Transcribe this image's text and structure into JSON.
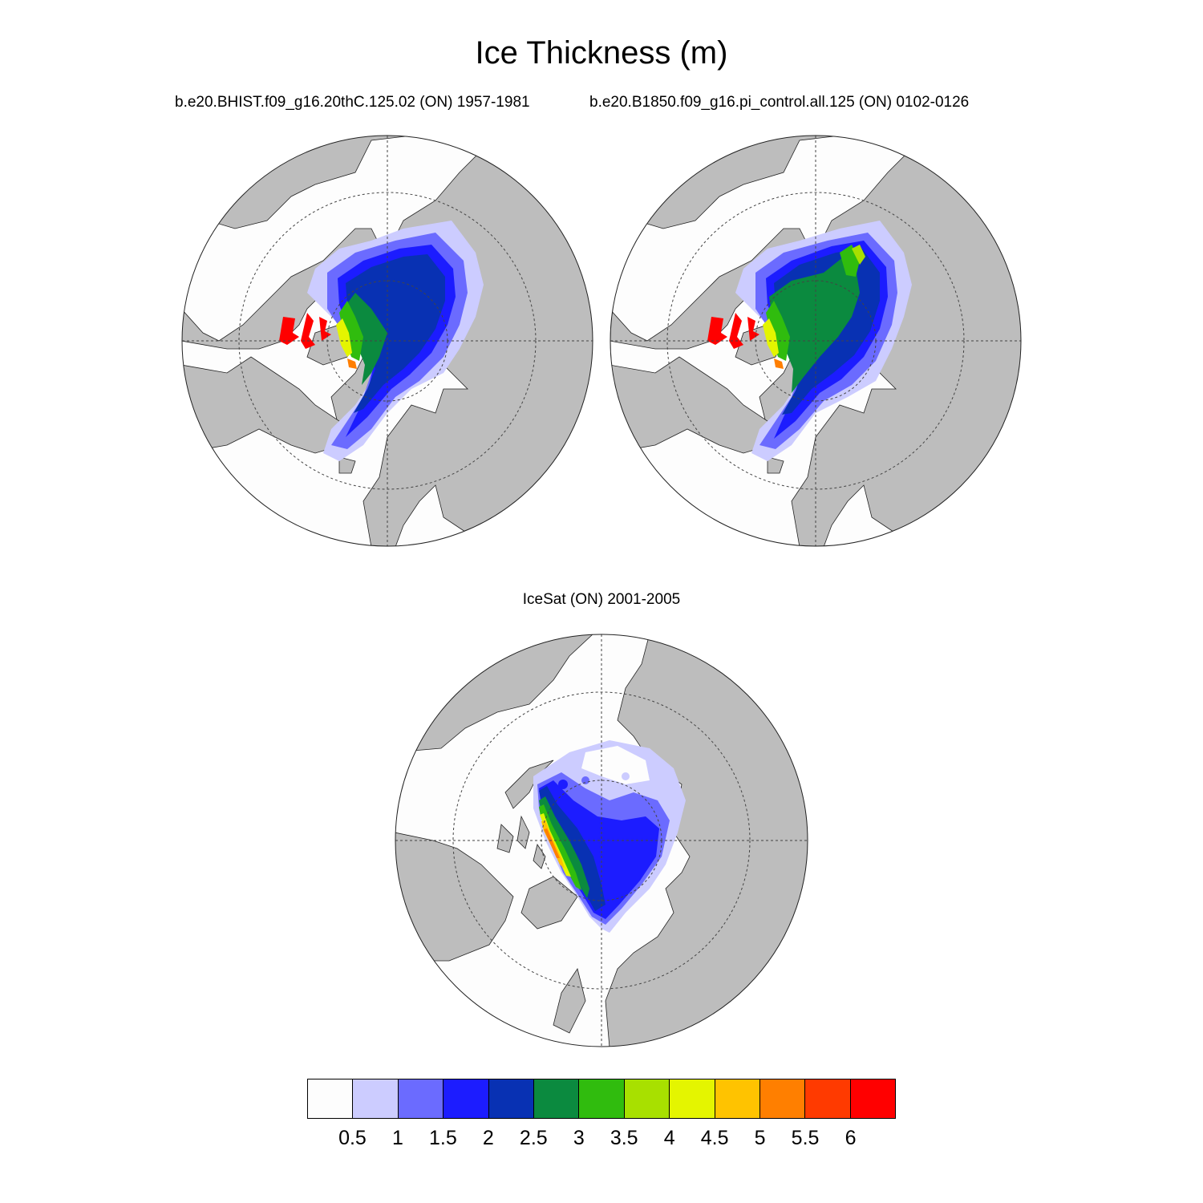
{
  "title": "Ice Thickness (m)",
  "panels": [
    {
      "subtitle": "b.e20.BHIST.f09_g16.20thC.125.02 (ON) 1957-1981"
    },
    {
      "subtitle": "b.e20.B1850.f09_g16.pi_control.all.125 (ON) 0102-0126"
    },
    {
      "subtitle": "IceSat (ON) 2001-2005"
    }
  ],
  "colorbar": {
    "labels": [
      "0.5",
      "1",
      "1.5",
      "2",
      "2.5",
      "3",
      "3.5",
      "4",
      "4.5",
      "5",
      "5.5",
      "6"
    ],
    "colors": [
      "#fdfdfd",
      "#ccccff",
      "#6b6bff",
      "#1c1cff",
      "#0831b3",
      "#0b8a3f",
      "#30bc0e",
      "#a8e000",
      "#e4f500",
      "#ffc300",
      "#ff7f00",
      "#ff3a00",
      "#ff0000"
    ]
  },
  "style": {
    "land_color": "#bdbdbd",
    "ocean_color": "#fdfdfd"
  }
}
